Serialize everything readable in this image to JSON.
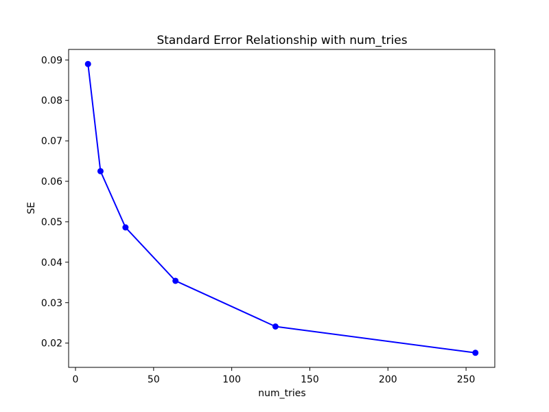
{
  "chart_data": {
    "type": "line",
    "title": "Standard Error Relationship with num_tries",
    "xlabel": "num_tries",
    "ylabel": "SE",
    "x": [
      8,
      16,
      32,
      64,
      128,
      256
    ],
    "y": [
      0.089,
      0.0625,
      0.0486,
      0.0354,
      0.0241,
      0.0176
    ],
    "xlim": [
      -4.4,
      268.4
    ],
    "ylim": [
      0.014,
      0.0926
    ],
    "xticks": [
      0,
      50,
      100,
      150,
      200,
      250
    ],
    "xtick_labels": [
      "0",
      "50",
      "100",
      "150",
      "200",
      "250"
    ],
    "yticks": [
      0.02,
      0.03,
      0.04,
      0.05,
      0.06,
      0.07,
      0.08,
      0.09
    ],
    "ytick_labels": [
      "0.02",
      "0.03",
      "0.04",
      "0.05",
      "0.06",
      "0.07",
      "0.08",
      "0.09"
    ],
    "line_color": "#0000ff",
    "marker": "o",
    "grid": false,
    "legend": "none",
    "background_color": "#ffffff",
    "axis_color": "#000000"
  }
}
